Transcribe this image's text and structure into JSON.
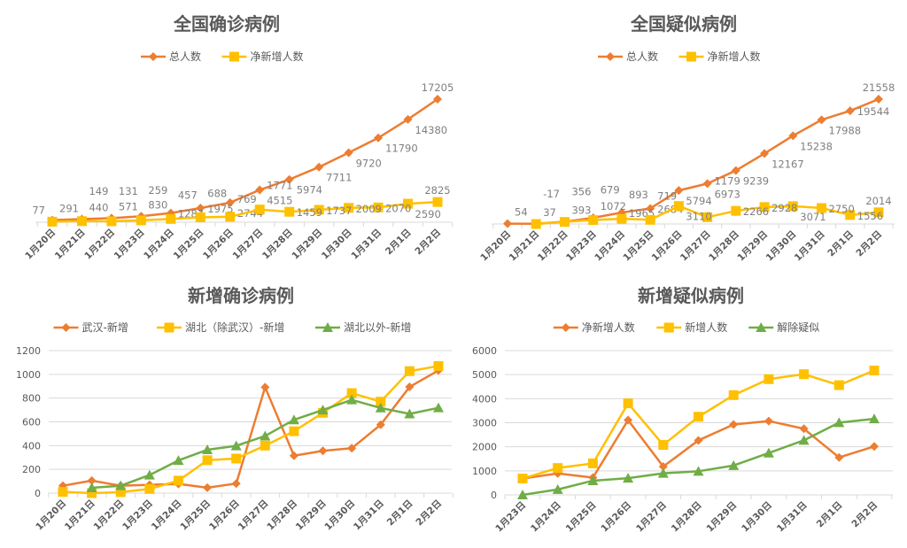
{
  "chart_data": [
    {
      "type": "line",
      "title": "全国确诊病例",
      "categories": [
        "1月20日",
        "1月21日",
        "1月22日",
        "1月23日",
        "1月24日",
        "1月25日",
        "1月26日",
        "1月27日",
        "1月28日",
        "1月29日",
        "1月30日",
        "1月31日",
        "2月1日",
        "2月2日"
      ],
      "series": [
        {
          "name": "总人数",
          "color": "#ED7D31",
          "marker": "diamond",
          "values": [
            291,
            440,
            571,
            830,
            1287,
            1975,
            2744,
            4515,
            5974,
            7711,
            9720,
            11790,
            14380,
            17205
          ]
        },
        {
          "name": "净新增人数",
          "color": "#FFC000",
          "marker": "square",
          "values": [
            77,
            149,
            131,
            259,
            457,
            688,
            769,
            1771,
            1459,
            1737,
            2009,
            2070,
            2590,
            2825
          ]
        }
      ],
      "data_labels": true,
      "y_axis": false,
      "grid": false,
      "ylim": [
        0,
        17205
      ],
      "legend": "top"
    },
    {
      "type": "line",
      "title": "全国疑似病例",
      "categories": [
        "1月20日",
        "1月21日",
        "1月22日",
        "1月23日",
        "1月24日",
        "1月25日",
        "1月26日",
        "1月27日",
        "1月28日",
        "1月29日",
        "1月30日",
        "1月31日",
        "2月1日",
        "2月2日"
      ],
      "series": [
        {
          "name": "总人数",
          "color": "#ED7D31",
          "marker": "diamond",
          "values": [
            54,
            37,
            393,
            1072,
            1965,
            2684,
            5794,
            6973,
            9239,
            12167,
            15238,
            17988,
            19544,
            21558
          ]
        },
        {
          "name": "净新增人数",
          "color": "#FFC000",
          "marker": "square",
          "values": [
            null,
            -17,
            356,
            679,
            893,
            719,
            3110,
            1179,
            2266,
            2928,
            3071,
            2750,
            1556,
            2014
          ]
        }
      ],
      "data_labels": true,
      "y_axis": false,
      "grid": false,
      "ylim": [
        0,
        21558
      ],
      "legend": "top"
    },
    {
      "type": "line",
      "title": "新增确诊病例",
      "categories": [
        "1月20日",
        "1月21日",
        "1月22日",
        "1月23日",
        "1月24日",
        "1月25日",
        "1月26日",
        "1月27日",
        "1月28日",
        "1月29日",
        "1月30日",
        "1月31日",
        "2月1日",
        "2月2日"
      ],
      "series": [
        {
          "name": "武汉-新增",
          "color": "#ED7D31",
          "marker": "diamond",
          "values": [
            62,
            105,
            62,
            70,
            77,
            46,
            80,
            892,
            315,
            356,
            378,
            576,
            894,
            1033
          ]
        },
        {
          "name": "湖北（除武汉）-新增",
          "color": "#FFC000",
          "marker": "square",
          "values": [
            10,
            0,
            8,
            35,
            105,
            277,
            291,
            400,
            521,
            676,
            842,
            770,
            1027,
            1070
          ]
        },
        {
          "name": "湖北以外-新增",
          "color": "#70AD47",
          "marker": "triangle",
          "values": [
            null,
            45,
            62,
            152,
            275,
            365,
            398,
            481,
            617,
            700,
            785,
            717,
            667,
            718
          ]
        }
      ],
      "data_labels": false,
      "y_axis": true,
      "grid": true,
      "ylim": [
        0,
        1200
      ],
      "yticks": [
        "0",
        "200",
        "400",
        "600",
        "800",
        "1000",
        "1200"
      ],
      "legend": "top"
    },
    {
      "type": "line",
      "title": "新增疑似病例",
      "categories": [
        "1月23日",
        "1月24日",
        "1月25日",
        "1月26日",
        "1月27日",
        "1月28日",
        "1月29日",
        "1月30日",
        "1月31日",
        "2月1日",
        "2月2日"
      ],
      "series": [
        {
          "name": "净新增人数",
          "color": "#ED7D31",
          "marker": "diamond",
          "values": [
            679,
            893,
            719,
            3110,
            1179,
            2266,
            2928,
            3071,
            2750,
            1556,
            2014
          ]
        },
        {
          "name": "新增人数",
          "color": "#FFC000",
          "marker": "square",
          "values": [
            680,
            1118,
            1309,
            3806,
            2077,
            3248,
            4148,
            4812,
            5019,
            4562,
            5173
          ]
        },
        {
          "name": "解除疑似",
          "color": "#70AD47",
          "marker": "triangle",
          "values": [
            0,
            225,
            590,
            696,
            898,
            982,
            1220,
            1741,
            2269,
            3006,
            3159
          ]
        }
      ],
      "data_labels": false,
      "y_axis": true,
      "grid": true,
      "ylim": [
        0,
        6000
      ],
      "yticks": [
        "0",
        "1000",
        "2000",
        "3000",
        "4000",
        "5000",
        "6000"
      ],
      "legend": "top"
    }
  ]
}
